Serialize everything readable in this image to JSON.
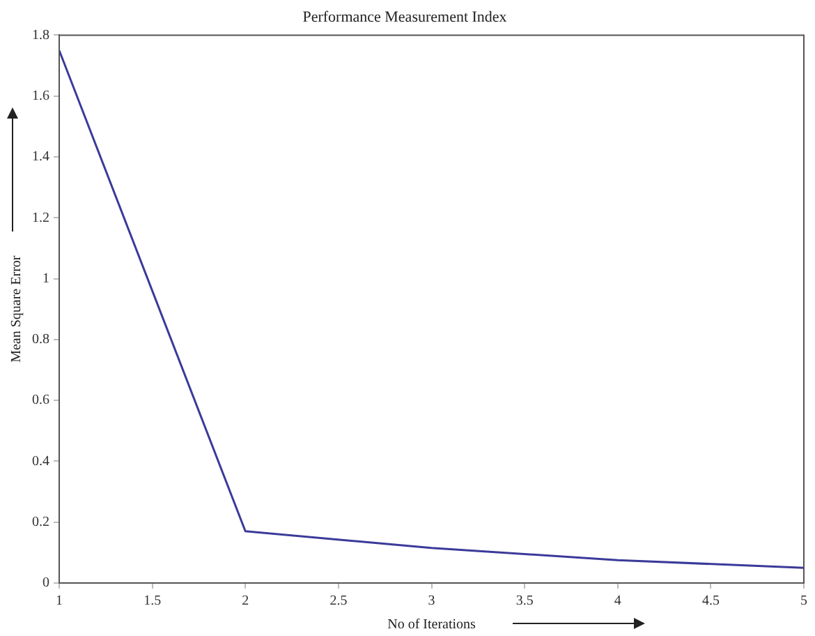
{
  "chart_data": {
    "type": "line",
    "title": "Performance Measurement Index",
    "xlabel": "No of Iterations",
    "ylabel": "Mean Square Error",
    "x": [
      1,
      2,
      3,
      4,
      5
    ],
    "series": [
      {
        "color": "#3a3a9a",
        "values": [
          1.75,
          0.17,
          0.115,
          0.075,
          0.05
        ]
      }
    ],
    "xlim": [
      1,
      5
    ],
    "xticks": [
      1,
      1.5,
      2,
      2.5,
      3,
      3.5,
      4,
      4.5,
      5
    ],
    "ylim": [
      0,
      1.8
    ],
    "yticks": [
      0,
      0.2,
      0.4,
      0.6,
      0.8,
      1,
      1.2,
      1.4,
      1.6,
      1.8
    ],
    "grid": false,
    "legend": false,
    "marker": "none",
    "line_style": "solid"
  }
}
